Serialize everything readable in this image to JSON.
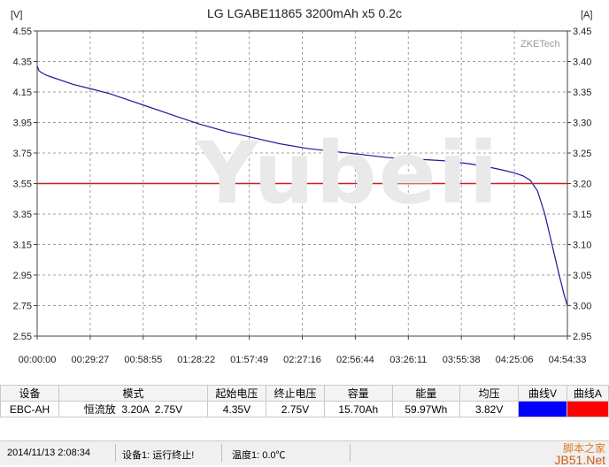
{
  "chart_data": {
    "type": "line",
    "title": "LG LGABE11865 3200mAh x5 0.2c",
    "y_unit_left": "[V]",
    "y_unit_right": "[A]",
    "ylim_left": [
      2.55,
      4.55
    ],
    "ylim_right": [
      2.95,
      3.45
    ],
    "yticks_left": [
      "4.55",
      "4.35",
      "4.15",
      "3.95",
      "3.75",
      "3.55",
      "3.35",
      "3.15",
      "2.95",
      "2.75",
      "2.55"
    ],
    "yticks_right": [
      "3.45",
      "3.40",
      "3.35",
      "3.30",
      "3.25",
      "3.20",
      "3.15",
      "3.10",
      "3.05",
      "3.00",
      "2.95"
    ],
    "xticks": [
      "00:00:00",
      "00:29:27",
      "00:58:55",
      "01:28:22",
      "01:57:49",
      "02:27:16",
      "02:56:44",
      "03:26:11",
      "03:55:38",
      "04:25:06",
      "04:54:33"
    ],
    "grid": true,
    "series": [
      {
        "axis": "left",
        "color": "#1a1a9c",
        "x_min": [
          0,
          1,
          2,
          5,
          10,
          15,
          20,
          30,
          40,
          50,
          60,
          75,
          90,
          105,
          120,
          135,
          150,
          165,
          180,
          195,
          210,
          225,
          240,
          250,
          258,
          265,
          270,
          274,
          278,
          282,
          285,
          288,
          290,
          291.5,
          292.5,
          293.5,
          294.5
        ],
        "y": [
          4.32,
          4.29,
          4.28,
          4.26,
          4.24,
          4.22,
          4.2,
          4.17,
          4.14,
          4.1,
          4.06,
          4.0,
          3.94,
          3.89,
          3.85,
          3.81,
          3.78,
          3.76,
          3.74,
          3.72,
          3.71,
          3.7,
          3.68,
          3.66,
          3.64,
          3.62,
          3.6,
          3.57,
          3.5,
          3.35,
          3.2,
          3.05,
          2.95,
          2.88,
          2.83,
          2.79,
          2.75
        ]
      },
      {
        "axis": "right",
        "color": "#c81e1e",
        "x_min": [
          0,
          294.5
        ],
        "y": [
          3.2,
          3.2
        ]
      }
    ]
  },
  "watermark": "Yubeii",
  "logo": "ZKETech",
  "table": {
    "headers": [
      "设备",
      "模式",
      "起始电压",
      "终止电压",
      "容量",
      "能量",
      "均压",
      "曲线V",
      "曲线A"
    ],
    "row": [
      "EBC-AH",
      "恒流放  3.20A  2.75V",
      "4.35V",
      "2.75V",
      "15.70Ah",
      "59.97Wh",
      "3.82V"
    ],
    "curve_v_color": "#0000ff",
    "curve_a_color": "#ff0000"
  },
  "status": {
    "datetime": "2014/11/13 2:08:34",
    "device": "设备1: 运行终止!",
    "temperature": "温度1: 0.0℃"
  },
  "site": {
    "line1": "脚本之家",
    "line2": "JB51.Net"
  }
}
